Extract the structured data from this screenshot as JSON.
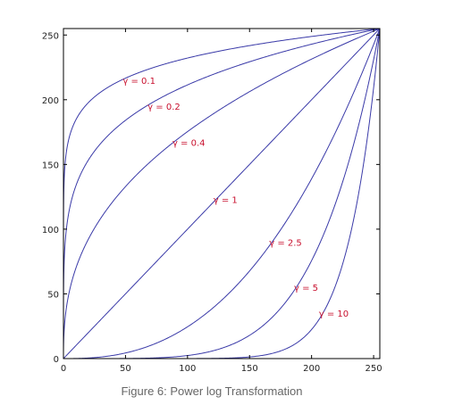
{
  "chart_data": {
    "type": "line",
    "function": "s = c * r^gamma",
    "xlim": [
      0,
      255
    ],
    "ylim": [
      0,
      255
    ],
    "x_ticks": [
      0,
      50,
      100,
      150,
      200,
      250
    ],
    "y_ticks": [
      0,
      50,
      100,
      150,
      200,
      250
    ],
    "xlabel": "",
    "ylabel": "",
    "grid": false,
    "colors": {
      "curve": "#3a3aa8",
      "label": "#c8102e",
      "axis": "#000000"
    },
    "series": [
      {
        "gamma": 0.1,
        "label": "γ = 0.1",
        "label_at": [
          50,
          215
        ]
      },
      {
        "gamma": 0.2,
        "label": "γ = 0.2",
        "label_at": [
          70,
          195
        ]
      },
      {
        "gamma": 0.4,
        "label": "γ = 0.4",
        "label_at": [
          90,
          167
        ]
      },
      {
        "gamma": 1,
        "label": "γ = 1",
        "label_at": [
          123,
          123
        ]
      },
      {
        "gamma": 2.5,
        "label": "γ = 2.5",
        "label_at": [
          168,
          90
        ]
      },
      {
        "gamma": 5,
        "label": "γ = 5",
        "label_at": [
          188,
          55
        ]
      },
      {
        "gamma": 10,
        "label": "γ = 10",
        "label_at": [
          208,
          35
        ]
      }
    ],
    "caption": "Figure 6: Power log Transformation"
  }
}
